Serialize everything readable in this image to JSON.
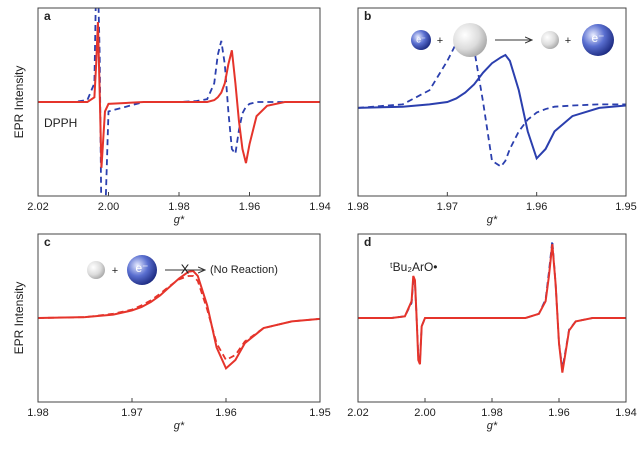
{
  "chart_data": [
    {
      "type": "line",
      "label": "a",
      "ylabel": "EPR Intensity",
      "xlabel": "g*",
      "xlim": [
        2.02,
        1.94
      ],
      "ylim": [
        -1,
        1
      ],
      "xticks": [
        2.02,
        {
          "value": 2,
          "label": "2.00"
        },
        1.98,
        1.96,
        1.94
      ],
      "annotations": [
        "DPPH"
      ],
      "x": [
        2.02,
        2.01,
        2.006,
        2.004,
        2.0035,
        2.003,
        2.0025,
        2.002,
        2.001,
        2.0,
        1.99,
        1.98,
        1.975,
        1.972,
        1.97,
        1.969,
        1.968,
        1.967,
        1.966,
        1.965,
        1.964,
        1.963,
        1.962,
        1.961,
        1.96,
        1.958,
        1.955,
        1.95,
        1.94
      ],
      "series": [
        {
          "color": "#2b3fae",
          "dashed": true,
          "values": [
            0,
            0,
            0.02,
            0.2,
            1.3,
            1.3,
            0.5,
            -1.3,
            -1.3,
            -0.1,
            0,
            0,
            0.01,
            0.03,
            0.2,
            0.5,
            0.65,
            0.4,
            -0.1,
            -0.5,
            -0.55,
            -0.3,
            -0.12,
            -0.05,
            -0.02,
            0,
            0,
            0,
            0
          ]
        },
        {
          "color": "#e5342b",
          "dashed": false,
          "values": [
            0,
            0,
            0,
            0.05,
            0.4,
            0.85,
            0.1,
            -0.7,
            -0.1,
            -0.02,
            0,
            0,
            0,
            0,
            0.02,
            0.05,
            0.1,
            0.2,
            0.4,
            0.55,
            0.2,
            -0.2,
            -0.5,
            -0.65,
            -0.45,
            -0.15,
            -0.04,
            0,
            0
          ]
        }
      ]
    },
    {
      "type": "line",
      "label": "b",
      "xlabel": "g*",
      "xlim": [
        1.98,
        1.95
      ],
      "ylim": [
        -0.8,
        0.8
      ],
      "xticks": [
        1.98,
        1.97,
        1.96,
        1.95
      ],
      "annotations": [
        "e⁻",
        "+",
        "+",
        "e⁻"
      ],
      "x": [
        1.98,
        1.975,
        1.972,
        1.97,
        1.969,
        1.968,
        1.967,
        1.966,
        1.965,
        1.964,
        1.9635,
        1.963,
        1.962,
        1.961,
        1.96,
        1.959,
        1.958,
        1.956,
        1.953,
        1.95
      ],
      "series": [
        {
          "color": "#2b3fae",
          "dashed": true,
          "values": [
            -0.05,
            -0.02,
            0.1,
            0.35,
            0.5,
            0.6,
            0.45,
            0,
            -0.5,
            -0.55,
            -0.5,
            -0.4,
            -0.25,
            -0.15,
            -0.09,
            -0.06,
            -0.04,
            -0.03,
            -0.02,
            -0.02
          ]
        },
        {
          "color": "#2b3fae",
          "dashed": false,
          "values": [
            -0.05,
            -0.04,
            -0.02,
            0,
            0.03,
            0.08,
            0.15,
            0.25,
            0.33,
            0.38,
            0.4,
            0.35,
            0.1,
            -0.25,
            -0.48,
            -0.4,
            -0.25,
            -0.12,
            -0.05,
            -0.03
          ]
        }
      ]
    },
    {
      "type": "line",
      "label": "c",
      "ylabel": "EPR Intensity",
      "xlabel": "g*",
      "xlim": [
        1.98,
        1.95
      ],
      "ylim": [
        -1,
        1
      ],
      "xticks": [
        1.98,
        1.97,
        1.96,
        1.95
      ],
      "annotations": [
        "+",
        "e⁻",
        "X",
        "(No Reaction)"
      ],
      "x": [
        1.98,
        1.975,
        1.972,
        1.97,
        1.969,
        1.968,
        1.967,
        1.966,
        1.965,
        1.964,
        1.9635,
        1.963,
        1.962,
        1.961,
        1.96,
        1.959,
        1.958,
        1.956,
        1.953,
        1.95
      ],
      "series": [
        {
          "color": "#e5342b",
          "dashed": true,
          "values": [
            0,
            0.01,
            0.05,
            0.1,
            0.15,
            0.21,
            0.29,
            0.38,
            0.46,
            0.5,
            0.5,
            0.44,
            0.1,
            -0.3,
            -0.5,
            -0.44,
            -0.28,
            -0.12,
            -0.04,
            -0.01
          ]
        },
        {
          "color": "#e5342b",
          "dashed": false,
          "values": [
            0,
            0.01,
            0.04,
            0.09,
            0.13,
            0.19,
            0.27,
            0.37,
            0.47,
            0.55,
            0.56,
            0.5,
            0.15,
            -0.35,
            -0.6,
            -0.5,
            -0.3,
            -0.12,
            -0.04,
            -0.01
          ]
        }
      ]
    },
    {
      "type": "line",
      "label": "d",
      "xlabel": "g*",
      "xlim": [
        2.02,
        1.94
      ],
      "ylim": [
        -1,
        1
      ],
      "xticks": [
        2.02,
        {
          "value": 2,
          "label": "2.00"
        },
        1.98,
        1.96,
        1.94
      ],
      "annotations": [
        "ᵗBu₂ArO•"
      ],
      "x": [
        2.02,
        2.01,
        2.006,
        2.004,
        2.0035,
        2.003,
        2.0025,
        2.002,
        2.0015,
        2.001,
        2.0,
        1.99,
        1.98,
        1.97,
        1.966,
        1.964,
        1.963,
        1.962,
        1.961,
        1.96,
        1.959,
        1.958,
        1.957,
        1.955,
        1.95,
        1.94
      ],
      "series": [
        {
          "color": "#2b3fae",
          "dashed": true,
          "values": [
            0,
            0,
            0.02,
            0.18,
            0.45,
            0.42,
            0,
            -0.45,
            -0.5,
            -0.1,
            0,
            0,
            0,
            0,
            0.05,
            0.22,
            0.55,
            0.92,
            0.4,
            -0.3,
            -0.6,
            -0.38,
            -0.14,
            -0.04,
            0,
            0
          ]
        },
        {
          "color": "#e5342b",
          "dashed": false,
          "values": [
            0,
            0,
            0.02,
            0.2,
            0.5,
            0.45,
            0,
            -0.5,
            -0.55,
            -0.1,
            0,
            0,
            0,
            0,
            0.05,
            0.2,
            0.5,
            0.88,
            0.4,
            -0.3,
            -0.65,
            -0.4,
            -0.15,
            -0.04,
            0,
            0
          ]
        }
      ]
    }
  ]
}
